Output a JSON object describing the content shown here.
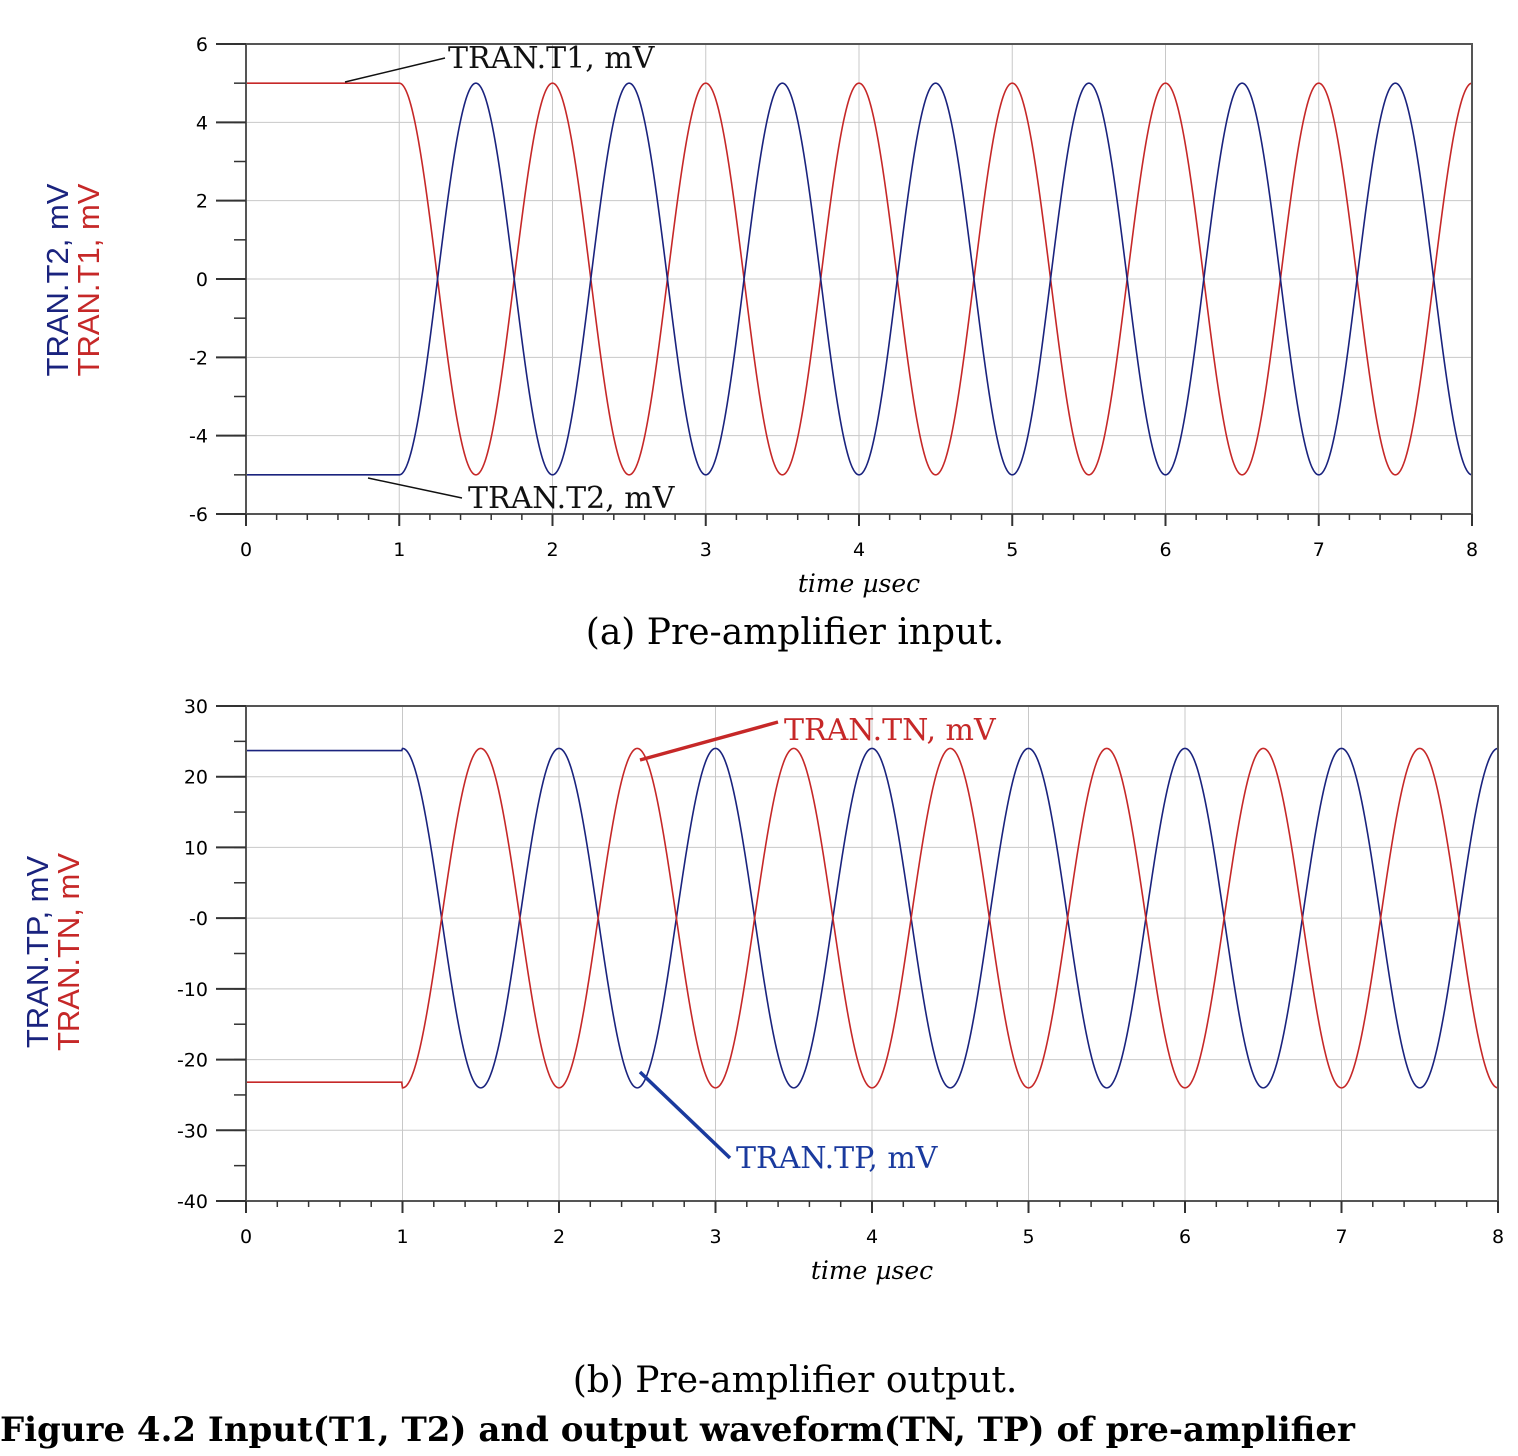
{
  "chart_data": [
    {
      "type": "line",
      "xlabel": "time µsec",
      "ylabel_series": [
        "TRAN.T2, mV",
        "TRAN.T1, mV"
      ],
      "xlim": [
        0,
        8
      ],
      "ylim": [
        -6,
        6
      ],
      "xticks": [
        "0",
        "1",
        "2",
        "3",
        "4",
        "5",
        "6",
        "7",
        "8"
      ],
      "yticks": [
        "6",
        "4",
        "2",
        "0",
        "-2",
        "-4",
        "-6"
      ],
      "grid": true,
      "series": [
        {
          "name": "TRAN.T1, mV",
          "color": "#c62828",
          "initial": 5,
          "start": 1,
          "period": 1,
          "amplitude": 5,
          "phase": "cos"
        },
        {
          "name": "TRAN.T2, mV",
          "color": "#1a237e",
          "initial": -5,
          "start": 1,
          "period": 1,
          "amplitude": 5,
          "phase": "-cos"
        }
      ],
      "annotations": [
        "TRAN.T1, mV",
        "TRAN.T2, mV"
      ],
      "caption": "(a)  Pre-amplifier input."
    },
    {
      "type": "line",
      "xlabel": "time µsec",
      "ylabel_series": [
        "TRAN.TP, mV",
        "TRAN.TN, mV"
      ],
      "xlim": [
        0,
        8
      ],
      "ylim": [
        -40,
        30
      ],
      "xticks": [
        "0",
        "1",
        "2",
        "3",
        "4",
        "5",
        "6",
        "7",
        "8"
      ],
      "yticks": [
        "30",
        "20",
        "10",
        "-0",
        "-10",
        "-20",
        "-30",
        "-40"
      ],
      "grid": true,
      "series": [
        {
          "name": "TRAN.TP, mV",
          "color": "#1a237e",
          "initial": 23.7,
          "start": 1,
          "period": 1,
          "amplitude": 24,
          "phase": "cos"
        },
        {
          "name": "TRAN.TN, mV",
          "color": "#c62828",
          "initial": -23.2,
          "start": 1,
          "period": 1,
          "amplitude": 24,
          "phase": "-cos"
        }
      ],
      "annotations": [
        "TRAN.TN, mV",
        "TRAN.TP, mV"
      ],
      "caption": "(b)  Pre-amplifier output."
    }
  ],
  "figure_caption": "Figure 4.2 Input(T1, T2) and output waveform(TN, TP) of pre-amplifier"
}
